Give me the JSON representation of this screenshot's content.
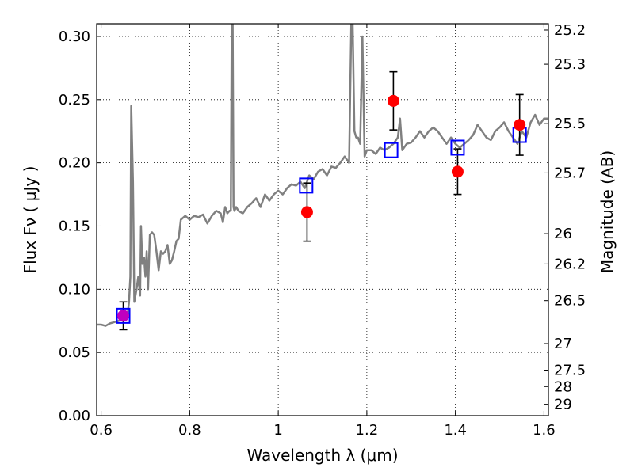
{
  "chart_data": {
    "type": "line",
    "xlabel": "Wavelength  λ (μm)",
    "ylabel": "Flux  Fν  ( μJy )",
    "ylabel_right": "Magnitude (AB)",
    "xlim": [
      0.59,
      1.61
    ],
    "ylim": [
      0.0,
      0.31
    ],
    "grid": true,
    "x_ticks": [
      {
        "value": 0.6,
        "label": "0.6"
      },
      {
        "value": 0.8,
        "label": "0.8"
      },
      {
        "value": 1.0,
        "label": "1"
      },
      {
        "value": 1.2,
        "label": "1.2"
      },
      {
        "value": 1.4,
        "label": "1.4"
      },
      {
        "value": 1.6,
        "label": "1.6"
      }
    ],
    "y_ticks": [
      {
        "value": 0.0,
        "label": "0.00"
      },
      {
        "value": 0.05,
        "label": "0.05"
      },
      {
        "value": 0.1,
        "label": "0.10"
      },
      {
        "value": 0.15,
        "label": "0.15"
      },
      {
        "value": 0.2,
        "label": "0.20"
      },
      {
        "value": 0.25,
        "label": "0.25"
      },
      {
        "value": 0.3,
        "label": "0.30"
      }
    ],
    "y_right_ticks": [
      {
        "flux": 0.305,
        "label": "25.2"
      },
      {
        "flux": 0.278,
        "label": "25.3"
      },
      {
        "flux": 0.231,
        "label": "25.5"
      },
      {
        "flux": 0.192,
        "label": "25.7"
      },
      {
        "flux": 0.144,
        "label": "26"
      },
      {
        "flux": 0.12,
        "label": "26.2"
      },
      {
        "flux": 0.091,
        "label": "26.5"
      },
      {
        "flux": 0.057,
        "label": "27"
      },
      {
        "flux": 0.036,
        "label": "27.5"
      },
      {
        "flux": 0.023,
        "label": "28"
      },
      {
        "flux": 0.009,
        "label": "29"
      }
    ],
    "model_spectrum": {
      "color": "#808080",
      "x": [
        0.59,
        0.6,
        0.61,
        0.62,
        0.63,
        0.64,
        0.65,
        0.655,
        0.66,
        0.663,
        0.666,
        0.668,
        0.672,
        0.675,
        0.68,
        0.684,
        0.688,
        0.69,
        0.693,
        0.697,
        0.7,
        0.703,
        0.706,
        0.708,
        0.71,
        0.715,
        0.72,
        0.725,
        0.73,
        0.735,
        0.74,
        0.745,
        0.75,
        0.755,
        0.76,
        0.765,
        0.77,
        0.775,
        0.78,
        0.79,
        0.8,
        0.81,
        0.82,
        0.83,
        0.84,
        0.85,
        0.86,
        0.87,
        0.875,
        0.88,
        0.885,
        0.89,
        0.893,
        0.895,
        0.897,
        0.899,
        0.901,
        0.905,
        0.91,
        0.92,
        0.93,
        0.94,
        0.95,
        0.96,
        0.97,
        0.98,
        0.99,
        1.0,
        1.01,
        1.02,
        1.03,
        1.04,
        1.05,
        1.06,
        1.07,
        1.08,
        1.09,
        1.1,
        1.11,
        1.12,
        1.13,
        1.14,
        1.15,
        1.16,
        1.165,
        1.168,
        1.172,
        1.176,
        1.18,
        1.185,
        1.19,
        1.195,
        1.2,
        1.21,
        1.22,
        1.23,
        1.24,
        1.25,
        1.26,
        1.27,
        1.275,
        1.28,
        1.29,
        1.3,
        1.31,
        1.32,
        1.33,
        1.34,
        1.35,
        1.36,
        1.37,
        1.38,
        1.39,
        1.4,
        1.41,
        1.42,
        1.43,
        1.44,
        1.45,
        1.46,
        1.47,
        1.48,
        1.49,
        1.5,
        1.51,
        1.52,
        1.53,
        1.54,
        1.55,
        1.56,
        1.57,
        1.58,
        1.59,
        1.6,
        1.61
      ],
      "y": [
        0.072,
        0.072,
        0.071,
        0.073,
        0.074,
        0.075,
        0.078,
        0.077,
        0.08,
        0.09,
        0.11,
        0.245,
        0.185,
        0.09,
        0.1,
        0.11,
        0.095,
        0.15,
        0.12,
        0.125,
        0.11,
        0.13,
        0.1,
        0.12,
        0.143,
        0.145,
        0.143,
        0.13,
        0.115,
        0.13,
        0.128,
        0.13,
        0.135,
        0.12,
        0.123,
        0.13,
        0.138,
        0.14,
        0.155,
        0.158,
        0.155,
        0.158,
        0.157,
        0.159,
        0.152,
        0.158,
        0.162,
        0.16,
        0.153,
        0.165,
        0.16,
        0.162,
        0.162,
        0.31,
        0.31,
        0.165,
        0.162,
        0.165,
        0.162,
        0.16,
        0.165,
        0.168,
        0.172,
        0.165,
        0.175,
        0.17,
        0.175,
        0.178,
        0.175,
        0.18,
        0.183,
        0.182,
        0.185,
        0.18,
        0.19,
        0.187,
        0.193,
        0.195,
        0.19,
        0.197,
        0.196,
        0.2,
        0.205,
        0.2,
        0.31,
        0.31,
        0.225,
        0.22,
        0.22,
        0.215,
        0.3,
        0.205,
        0.21,
        0.21,
        0.207,
        0.212,
        0.21,
        0.212,
        0.215,
        0.22,
        0.235,
        0.21,
        0.215,
        0.216,
        0.22,
        0.225,
        0.22,
        0.225,
        0.228,
        0.225,
        0.22,
        0.215,
        0.22,
        0.215,
        0.212,
        0.215,
        0.218,
        0.222,
        0.23,
        0.225,
        0.22,
        0.218,
        0.225,
        0.228,
        0.232,
        0.225,
        0.22,
        0.215,
        0.225,
        0.22,
        0.232,
        0.238,
        0.23,
        0.235,
        0.235
      ]
    },
    "observed_points": {
      "color": "#ff0000",
      "points": [
        {
          "x": 0.65,
          "y": 0.079,
          "err": 0.011
        },
        {
          "x": 1.065,
          "y": 0.161,
          "err": 0.023
        },
        {
          "x": 1.26,
          "y": 0.249,
          "err": 0.023
        },
        {
          "x": 1.405,
          "y": 0.193,
          "err": 0.018
        },
        {
          "x": 1.545,
          "y": 0.23,
          "err": 0.024
        }
      ]
    },
    "model_photometry": {
      "color": "#0000ff",
      "points": [
        {
          "x": 0.65,
          "y": 0.079
        },
        {
          "x": 1.063,
          "y": 0.182
        },
        {
          "x": 1.255,
          "y": 0.21
        },
        {
          "x": 1.405,
          "y": 0.212
        },
        {
          "x": 1.545,
          "y": 0.222
        }
      ]
    }
  }
}
